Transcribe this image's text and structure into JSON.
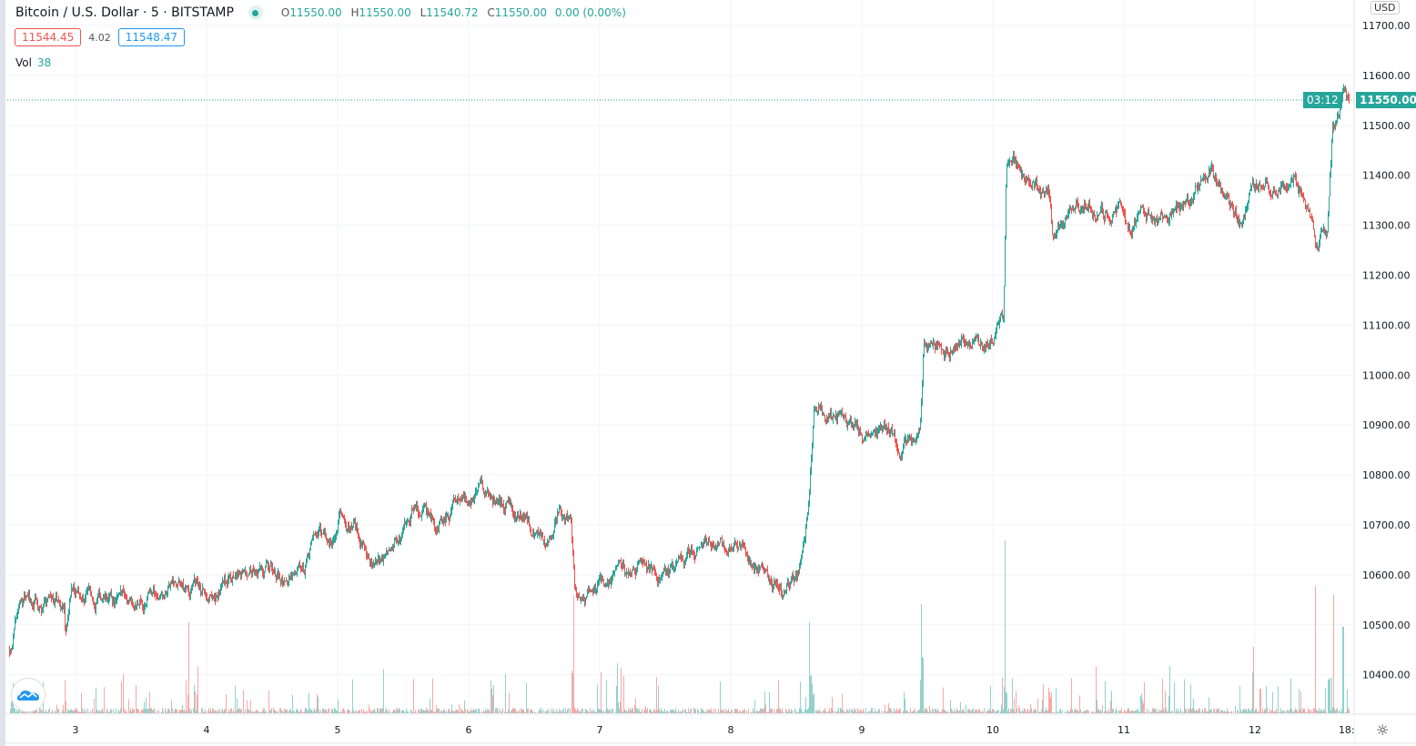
{
  "header": {
    "symbol": "Bitcoin / U.S. Dollar · 5 · BITSTAMP",
    "o_label": "O",
    "o": "11550.00",
    "h_label": "H",
    "h": "11550.00",
    "l_label": "L",
    "l": "11540.72",
    "c_label": "C",
    "c": "11550.00",
    "change": "0.00 (0.00%)"
  },
  "quote": {
    "bid": "11544.45",
    "spread": "4.02",
    "ask": "11548.47"
  },
  "volume": {
    "label": "Vol",
    "value": "38"
  },
  "axis": {
    "currency": "USD",
    "current_price": "11550.00",
    "countdown": "03:12"
  },
  "colors": {
    "up": "#26a69a",
    "down": "#ef5350",
    "grid": "#f0f3fa"
  },
  "chart_data": {
    "type": "candlestick",
    "title": "Bitcoin / U.S. Dollar · 5 · BITSTAMP",
    "interval": "5m",
    "ylim": [
      10320,
      11750
    ],
    "y_ticks": [
      "10400.00",
      "10500.00",
      "10600.00",
      "10700.00",
      "10800.00",
      "10900.00",
      "11000.00",
      "11100.00",
      "11200.00",
      "11300.00",
      "11400.00",
      "11500.00",
      "11600.00",
      "11700.00"
    ],
    "x_ticks": [
      {
        "day": 3,
        "label": "3"
      },
      {
        "day": 4,
        "label": "4"
      },
      {
        "day": 5,
        "label": "5"
      },
      {
        "day": 6,
        "label": "6"
      },
      {
        "day": 7,
        "label": "7"
      },
      {
        "day": 8,
        "label": "8"
      },
      {
        "day": 9,
        "label": "9"
      },
      {
        "day": 10,
        "label": "10"
      },
      {
        "day": 11,
        "label": "11"
      },
      {
        "day": 12,
        "label": "12"
      },
      {
        "day": 12.7,
        "label": "18:"
      }
    ],
    "xlim": [
      2.45,
      12.72
    ],
    "price_path": [
      [
        2.49,
        10450
      ],
      [
        2.58,
        10560
      ],
      [
        2.91,
        10540
      ],
      [
        2.92,
        10480
      ],
      [
        2.98,
        10570
      ],
      [
        3.33,
        10540
      ],
      [
        3.71,
        10580
      ],
      [
        4.02,
        10550
      ],
      [
        4.28,
        10620
      ],
      [
        4.5,
        10600
      ],
      [
        4.74,
        10600
      ],
      [
        4.81,
        10680
      ],
      [
        4.98,
        10660
      ],
      [
        5.03,
        10720
      ],
      [
        5.27,
        10640
      ],
      [
        5.48,
        10680
      ],
      [
        5.58,
        10740
      ],
      [
        5.76,
        10700
      ],
      [
        6.0,
        10760
      ],
      [
        6.17,
        10780
      ],
      [
        6.45,
        10700
      ],
      [
        6.62,
        10650
      ],
      [
        6.69,
        10730
      ],
      [
        6.78,
        10700
      ],
      [
        6.81,
        10560
      ],
      [
        6.9,
        10560
      ],
      [
        7.28,
        10610
      ],
      [
        7.56,
        10610
      ],
      [
        7.8,
        10670
      ],
      [
        8.08,
        10650
      ],
      [
        8.4,
        10560
      ],
      [
        8.52,
        10600
      ],
      [
        8.59,
        10740
      ],
      [
        8.63,
        10930
      ],
      [
        8.95,
        10890
      ],
      [
        9.2,
        10880
      ],
      [
        9.3,
        10850
      ],
      [
        9.44,
        10880
      ],
      [
        9.47,
        11060
      ],
      [
        9.79,
        11060
      ],
      [
        9.92,
        11050
      ],
      [
        10.08,
        11100
      ],
      [
        10.1,
        11420
      ],
      [
        10.42,
        11360
      ],
      [
        10.45,
        11280
      ],
      [
        10.63,
        11350
      ],
      [
        10.97,
        11330
      ],
      [
        11.04,
        11290
      ],
      [
        11.25,
        11320
      ],
      [
        11.46,
        11350
      ],
      [
        11.67,
        11410
      ],
      [
        11.88,
        11320
      ],
      [
        12.05,
        11380
      ],
      [
        12.29,
        11390
      ],
      [
        12.43,
        11310
      ],
      [
        12.47,
        11250
      ],
      [
        12.55,
        11290
      ],
      [
        12.59,
        11500
      ],
      [
        12.64,
        11520
      ],
      [
        12.67,
        11580
      ],
      [
        12.72,
        11550
      ]
    ],
    "volume_spikes": [
      [
        3.86,
        100
      ],
      [
        6.8,
        130
      ],
      [
        8.6,
        100
      ],
      [
        9.45,
        120
      ],
      [
        10.09,
        190
      ],
      [
        12.46,
        140
      ],
      [
        12.6,
        130
      ],
      [
        12.67,
        95
      ]
    ]
  }
}
